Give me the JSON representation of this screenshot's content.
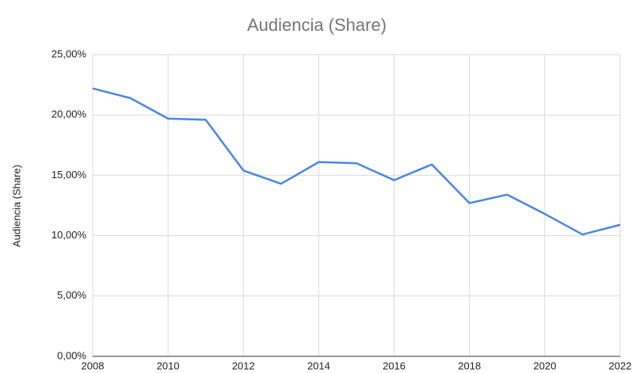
{
  "chart_data": {
    "type": "line",
    "title": "Audiencia (Share)",
    "ylabel": "Audiencia (Share)",
    "x": [
      2008,
      2009,
      2010,
      2011,
      2012,
      2013,
      2014,
      2015,
      2016,
      2017,
      2018,
      2019,
      2020,
      2021,
      2022
    ],
    "series": [
      {
        "name": "Audiencia (Share)",
        "color": "#4a86e8",
        "values": [
          22.2,
          21.4,
          19.7,
          19.6,
          15.4,
          14.3,
          16.1,
          16.0,
          14.6,
          15.9,
          12.7,
          13.4,
          11.8,
          10.1,
          10.9
        ]
      }
    ],
    "xlim": [
      2008,
      2022
    ],
    "xticks": [
      2008,
      2010,
      2012,
      2014,
      2016,
      2018,
      2020,
      2022
    ],
    "ylim": [
      0,
      25
    ],
    "yticks": [
      {
        "value": 0,
        "label": "0,00%"
      },
      {
        "value": 5,
        "label": "5,00%"
      },
      {
        "value": 10,
        "label": "10,00%"
      },
      {
        "value": 15,
        "label": "15,00%"
      },
      {
        "value": 20,
        "label": "20,00%"
      },
      {
        "value": 25,
        "label": "25,00%"
      }
    ],
    "grid": true
  }
}
